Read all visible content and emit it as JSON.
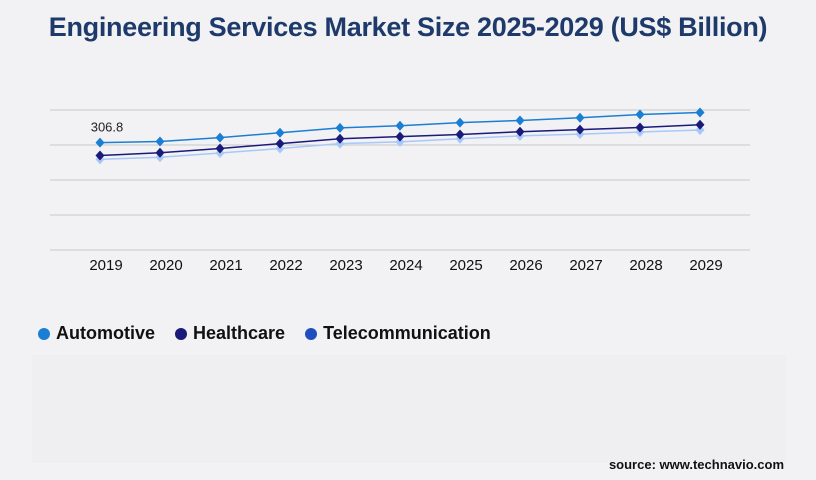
{
  "title": "Engineering Services Market Size 2025-2029 (US$ Billion)",
  "source": "source: www.technavio.com",
  "chart_data": {
    "type": "line",
    "title": "Engineering Services Market Size 2025-2029 (US$ Billion)",
    "categories": [
      "2019",
      "2020",
      "2021",
      "2022",
      "2023",
      "2024",
      "2025",
      "2026",
      "2027",
      "2028",
      "2029"
    ],
    "series": [
      {
        "name": "Automotive",
        "color": "#1a7fd4",
        "legend_color": "#1a7fd4",
        "values": [
          306.8,
          310,
          321,
          335,
          349,
          355,
          364,
          370,
          378,
          387,
          393
        ]
      },
      {
        "name": "Healthcare",
        "color": "#1a1a7a",
        "legend_color": "#1a1a7a",
        "values": [
          270,
          278,
          290,
          304,
          318,
          324,
          330,
          338,
          344,
          350,
          358
        ]
      },
      {
        "name": "Telecommunication",
        "color": "#a8c8f8",
        "legend_color": "#1f4fbf",
        "values": [
          259,
          265,
          277,
          290,
          304,
          309,
          318,
          326,
          331,
          337,
          343
        ]
      }
    ],
    "data_labels": [
      {
        "series": "Automotive",
        "category": "2019",
        "text": "306.8"
      }
    ],
    "ylim": [
      0,
      400
    ],
    "grid": true,
    "y_tick_labels_shown": false,
    "legend": "bottom-left"
  }
}
